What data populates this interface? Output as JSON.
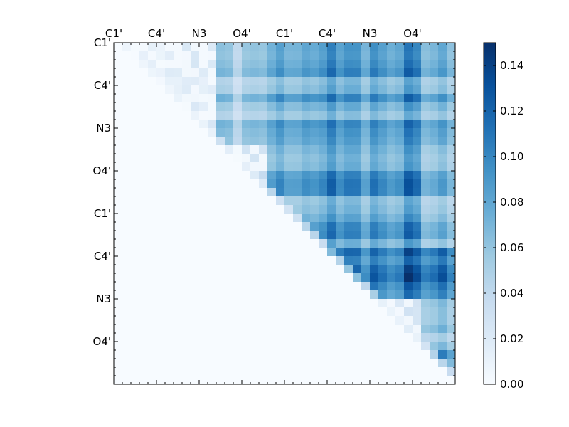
{
  "chart_data": {
    "type": "heatmap",
    "title": "",
    "xlabel": "",
    "ylabel": "",
    "n": 40,
    "tick_step": 5,
    "x_tick_labels": [
      "C1'",
      "C4'",
      "N3",
      "O4'",
      "C1'",
      "C4'",
      "N3",
      "O4'"
    ],
    "y_tick_labels": [
      "C1'",
      "C4'",
      "N3",
      "O4'",
      "C1'",
      "C4'",
      "N3",
      "O4'"
    ],
    "x_axis_position": "top",
    "colormap": "Blues",
    "colormap_stops": [
      "#f7fbff",
      "#deebf7",
      "#c6dbef",
      "#9ecae1",
      "#6baed6",
      "#4292c6",
      "#2171b5",
      "#08519c",
      "#08306b"
    ],
    "vmin": 0.0,
    "vmax": 0.15,
    "colorbar_ticks": [
      "0.00",
      "0.02",
      "0.04",
      "0.06",
      "0.08",
      "0.10",
      "0.12",
      "0.14"
    ],
    "colorbar_tick_values": [
      0.0,
      0.02,
      0.04,
      0.06,
      0.08,
      0.1,
      0.12,
      0.14
    ],
    "grid": false,
    "matrix_seed": 7,
    "block_means": [
      [
        0.01,
        0.02,
        0.05,
        0.075,
        0.085,
        0.09,
        0.07
      ],
      [
        0.0,
        0.02,
        0.05,
        0.075,
        0.08,
        0.085,
        0.07
      ],
      [
        0.0,
        0.0,
        0.03,
        0.08,
        0.09,
        0.095,
        0.07
      ],
      [
        0.0,
        0.0,
        0.0,
        0.075,
        0.085,
        0.09,
        0.065
      ],
      [
        0.0,
        0.0,
        0.0,
        0.0,
        0.11,
        0.115,
        0.11
      ],
      [
        0.0,
        0.0,
        0.0,
        0.0,
        0.015,
        0.025,
        0.06
      ],
      [
        0.0,
        0.0,
        0.0,
        0.0,
        0.0,
        0.02,
        0.08
      ]
    ]
  }
}
